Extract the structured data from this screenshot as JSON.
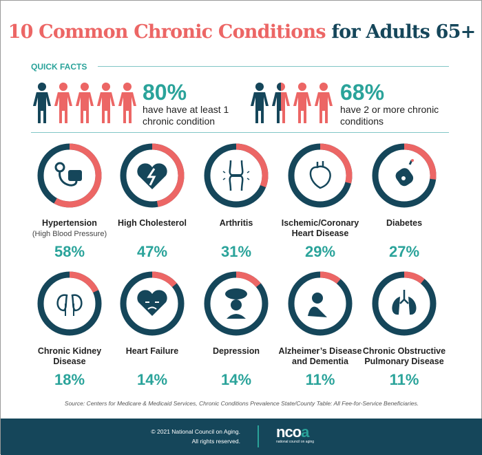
{
  "title": {
    "part1": "10 Common Chronic Conditions",
    "part2": "for Adults 65+"
  },
  "quick_facts": {
    "heading": "QUICK FACTS",
    "facts": [
      {
        "value": "80%",
        "text": "have have at least 1 chronic condition",
        "highlighted_people": 4,
        "total_people": 5
      },
      {
        "value": "68%",
        "text": "have 2 or more chronic conditions",
        "highlighted_people": 2.5,
        "total_people": 4
      }
    ]
  },
  "colors": {
    "dark": "#15465a",
    "coral": "#ec6665",
    "teal": "#2aa39a"
  },
  "chart_data": {
    "type": "pie",
    "style": "donut-rings",
    "categories": [
      {
        "name": "Hypertension",
        "subtitle": "(High Blood Pressure)",
        "value": 58,
        "label": "58%",
        "icon": "blood-pressure-cuff-icon"
      },
      {
        "name": "High Cholesterol",
        "value": 47,
        "label": "47%",
        "icon": "broken-heart-icon"
      },
      {
        "name": "Arthritis",
        "value": 31,
        "label": "31%",
        "icon": "knee-joint-icon"
      },
      {
        "name": "Ischemic/Coronary Heart Disease",
        "value": 29,
        "label": "29%",
        "icon": "heart-organ-icon"
      },
      {
        "name": "Diabetes",
        "value": 27,
        "label": "27%",
        "icon": "glucose-meter-icon"
      },
      {
        "name": "Chronic Kidney Disease",
        "value": 18,
        "label": "18%",
        "icon": "kidneys-icon"
      },
      {
        "name": "Heart Failure",
        "value": 14,
        "label": "14%",
        "icon": "sad-heart-icon"
      },
      {
        "name": "Depression",
        "value": 14,
        "label": "14%",
        "icon": "rain-cloud-person-icon"
      },
      {
        "name": "Alzheimer’s Disease and Dementia",
        "value": 11,
        "label": "11%",
        "icon": "head-in-hands-icon"
      },
      {
        "name": "Chronic Obstructive Pulmonary Disease",
        "value": 11,
        "label": "11%",
        "icon": "lungs-icon"
      }
    ]
  },
  "source": "Source: Centers for Medicare & Medicaid Services, Chronic Conditions Prevalence State/County Table: All Fee-for-Service Beneficiaries.",
  "footer": {
    "copyright": "© 2021 National Council on Aging.",
    "rights": "All rights reserved.",
    "logo_main": "nco",
    "logo_accent": "a",
    "logo_sub": "national council on aging"
  }
}
